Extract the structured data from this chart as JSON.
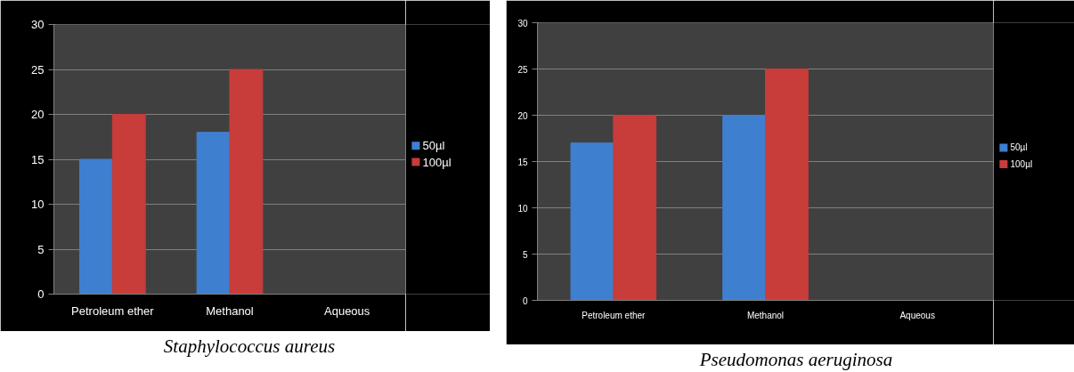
{
  "chart_data": [
    {
      "type": "bar",
      "categories": [
        "Petroleum ether",
        "Methanol",
        "Aqueous"
      ],
      "series": [
        {
          "name": "50µl",
          "color": "#3f7fd0",
          "values": [
            15,
            18,
            null
          ]
        },
        {
          "name": "100µl",
          "color": "#c83c3a",
          "values": [
            20,
            25,
            null
          ]
        }
      ],
      "ylim": [
        0,
        30
      ],
      "yticks": [
        0,
        5,
        10,
        15,
        20,
        25,
        30
      ],
      "grid": "y",
      "legend": "right",
      "annotations": [
        "Staphylococcus aureus"
      ]
    },
    {
      "type": "bar",
      "categories": [
        "Petroleum ether",
        "Methanol",
        "Aqueous"
      ],
      "series": [
        {
          "name": "50µl",
          "color": "#3f7fd0",
          "values": [
            17,
            20,
            null
          ]
        },
        {
          "name": "100µl",
          "color": "#c83c3a",
          "values": [
            20,
            25,
            null
          ]
        }
      ],
      "ylim": [
        0,
        30
      ],
      "yticks": [
        0,
        5,
        10,
        15,
        20,
        25,
        30
      ],
      "grid": "y",
      "legend": "right",
      "annotations": [
        "Pseudomonas aeruginosa"
      ]
    }
  ]
}
